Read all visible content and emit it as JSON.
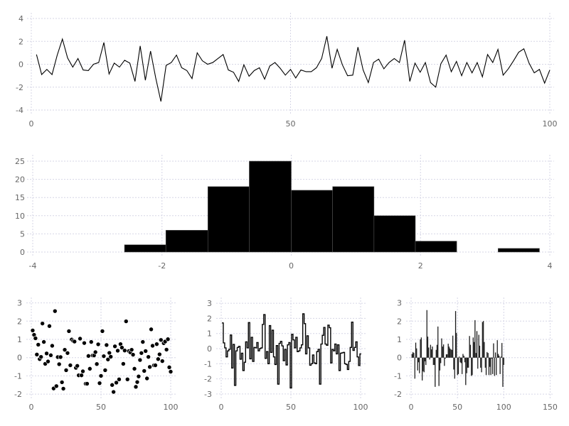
{
  "colors": {
    "line": "#000000",
    "grid": "#d6d6e6",
    "tick_label": "#666666",
    "bar_edge": "#555555"
  },
  "chart_data": [
    {
      "type": "line",
      "grid": true,
      "xlim": [
        0,
        100
      ],
      "ylim": [
        -4,
        4
      ],
      "xticks": [
        "0",
        "50",
        "100"
      ],
      "xtick_values": [
        0,
        50,
        100
      ],
      "yticks": [
        "-4",
        "-2",
        "0",
        "2",
        "4"
      ],
      "ytick_values": [
        -4,
        -2,
        0,
        2,
        4
      ],
      "x_start": 1,
      "values": [
        0.85,
        -0.9,
        -0.45,
        -0.9,
        0.8,
        2.2,
        0.55,
        -0.25,
        0.5,
        -0.5,
        -0.55,
        0.0,
        0.15,
        1.9,
        -0.85,
        0.1,
        -0.25,
        0.35,
        0.1,
        -1.5,
        1.6,
        -1.4,
        1.15,
        -1.2,
        -3.25,
        -0.1,
        0.15,
        0.8,
        -0.3,
        -0.55,
        -1.25,
        1.0,
        0.3,
        0.0,
        0.15,
        0.5,
        0.85,
        -0.5,
        -0.7,
        -1.5,
        -0.05,
        -1.05,
        -0.55,
        -0.3,
        -1.3,
        -0.15,
        0.15,
        -0.35,
        -0.95,
        -0.45,
        -1.2,
        -0.5,
        -0.65,
        -0.65,
        -0.3,
        0.5,
        2.45,
        -0.35,
        1.3,
        -0.05,
        -1.0,
        -0.95,
        1.5,
        -0.5,
        -1.6,
        0.15,
        0.45,
        -0.4,
        0.15,
        0.5,
        0.15,
        2.1,
        -1.5,
        0.1,
        -0.7,
        0.15,
        -1.6,
        -2.0,
        0.05,
        0.8,
        -0.65,
        0.25,
        -1.0,
        0.15,
        -0.75,
        0.15,
        -1.1,
        0.85,
        0.15,
        1.3,
        -0.95,
        -0.4,
        0.3,
        1.05,
        1.35,
        0.1,
        -0.75,
        -0.45,
        -1.65,
        -0.5
      ]
    },
    {
      "type": "bar",
      "subtype": "histogram",
      "grid": true,
      "xlim": [
        -4,
        4
      ],
      "ylim": [
        0,
        25
      ],
      "xticks": [
        "-4",
        "-2",
        "0",
        "2",
        "4"
      ],
      "xtick_values": [
        -4,
        -2,
        0,
        2,
        4
      ],
      "yticks": [
        "0",
        "5",
        "10",
        "15",
        "20",
        "25"
      ],
      "ytick_values": [
        0,
        5,
        10,
        15,
        20,
        25
      ],
      "bin_edges": [
        -2.58,
        -1.94,
        -1.29,
        -0.65,
        0.0,
        0.64,
        1.28,
        1.92,
        2.56,
        3.2,
        3.84
      ],
      "values": [
        2,
        6,
        18,
        25,
        17,
        18,
        10,
        3,
        0,
        1
      ]
    },
    {
      "type": "scatter",
      "grid": true,
      "xlim": [
        0,
        100
      ],
      "ylim": [
        -2,
        3
      ],
      "xticks": [
        "0",
        "50",
        "100"
      ],
      "xtick_values": [
        0,
        50,
        100
      ],
      "yticks": [
        "-2",
        "-1",
        "0",
        "1",
        "2",
        "3"
      ],
      "ytick_values": [
        -2,
        -1,
        0,
        1,
        2,
        3
      ],
      "x_start": 1,
      "values": [
        1.49,
        1.25,
        1.06,
        0.17,
        0.71,
        -0.08,
        0.04,
        1.87,
        0.86,
        -0.34,
        0.23,
        -0.21,
        1.73,
        0.13,
        0.65,
        -1.69,
        2.55,
        -1.56,
        0.03,
        -0.36,
        0.03,
        -1.35,
        -1.7,
        0.43,
        -0.69,
        0.25,
        1.45,
        -0.42,
        0.99,
        0.92,
        0.88,
        -0.56,
        -0.45,
        -0.97,
        1.04,
        -0.97,
        -0.75,
        0.8,
        -1.43,
        -1.43,
        0.09,
        -0.61,
        0.86,
        0.12,
        0.12,
        0.3,
        -0.35,
        0.73,
        -1.4,
        -1.0,
        1.45,
        0.08,
        -0.69,
        0.69,
        -0.1,
        0.26,
        0.05,
        -1.5,
        -1.88,
        0.62,
        -1.37,
        0.38,
        -1.19,
        0.74,
        0.55,
        -0.34,
        0.39,
        1.99,
        -1.19,
        0.36,
        0.29,
        0.43,
        0.16,
        -0.61,
        -1.6,
        -1.34,
        -1.03,
        -0.13,
        0.25,
        0.86,
        -0.73,
        0.36,
        -1.14,
        0.04,
        -0.51,
        1.55,
        0.65,
        -0.42,
        -0.42,
        0.74,
        -0.08,
        0.18,
        0.97,
        -0.19,
        0.79,
        0.88,
        0.44,
        1.01,
        -0.53,
        -0.77
      ]
    },
    {
      "type": "line",
      "subtype": "step",
      "grid": true,
      "xlim": [
        0,
        100
      ],
      "ylim": [
        -3,
        3
      ],
      "xticks": [
        "0",
        "50",
        "100"
      ],
      "xtick_values": [
        0,
        50,
        100
      ],
      "yticks": [
        "-3",
        "-2",
        "-1",
        "0",
        "1",
        "2",
        "3"
      ],
      "ytick_values": [
        -3,
        -2,
        -1,
        0,
        1,
        2,
        3
      ],
      "x_start": 1,
      "values": [
        1.7,
        0.38,
        0.05,
        -0.55,
        -0.15,
        -0.05,
        0.9,
        -1.28,
        0.28,
        -2.43,
        -0.15,
        0.08,
        0.15,
        -0.7,
        -0.3,
        -1.45,
        -0.9,
        0.45,
        0.05,
        1.72,
        -0.68,
        0.75,
        -0.85,
        0.08,
        0.05,
        0.4,
        -0.15,
        0.0,
        0.05,
        1.6,
        2.25,
        -0.65,
        -0.2,
        -1.0,
        1.52,
        -0.25,
        1.22,
        -0.55,
        -1.05,
        0.2,
        -2.35,
        0.35,
        0.48,
        0.18,
        -0.8,
        -0.05,
        -1.08,
        0.25,
        0.4,
        -2.6,
        0.95,
        0.58,
        0.05,
        0.75,
        -0.2,
        -0.15,
        0.05,
        0.25,
        2.3,
        1.65,
        -0.35,
        0.85,
        0.05,
        -1.1,
        -1.0,
        -0.42,
        -0.95,
        -1.0,
        -0.2,
        -0.05,
        -2.35,
        0.3,
        0.88,
        1.4,
        0.3,
        0.22,
        1.55,
        1.38,
        -0.95,
        -0.05,
        -0.15,
        0.3,
        -0.35,
        0.25,
        -1.45,
        -0.3,
        -0.28,
        -0.25,
        -1.0,
        -1.05,
        -1.38,
        -0.85,
        0.08,
        1.75,
        -0.12,
        0.08,
        0.45,
        -0.55,
        -1.12,
        -0.35
      ]
    },
    {
      "type": "bar",
      "grid": true,
      "xlim": [
        0,
        150
      ],
      "ylim": [
        -2,
        3
      ],
      "xticks": [
        "0",
        "50",
        "100",
        "150"
      ],
      "xtick_values": [
        0,
        50,
        100,
        150
      ],
      "yticks": [
        "-2",
        "-1",
        "0",
        "1",
        "2",
        "3"
      ],
      "ytick_values": [
        -2,
        -1,
        0,
        1,
        2,
        3
      ],
      "x_start": 1,
      "values": [
        0.2,
        0.3,
        0.25,
        -1.15,
        0.82,
        0.5,
        -0.7,
        -0.25,
        -0.85,
        1.0,
        1.1,
        -1.25,
        -0.75,
        -0.8,
        -0.2,
        -0.4,
        2.6,
        1.15,
        0.55,
        -0.1,
        0.7,
        0.45,
        0.6,
        -0.4,
        -0.4,
        -1.6,
        0.42,
        0.7,
        1.7,
        -1.55,
        -0.7,
        -0.3,
        1.05,
        0.6,
        0.72,
        -0.45,
        -0.05,
        0.18,
        0.18,
        0.76,
        0.6,
        0.5,
        0.45,
        0.42,
        1.2,
        -0.65,
        -1.15,
        2.55,
        1.35,
        -0.95,
        -0.9,
        0.05,
        -0.25,
        -0.3,
        -0.9,
        0.2,
        0.1,
        -0.25,
        -1.5,
        -0.85,
        -0.55,
        -0.55,
        1.18,
        0.7,
        -1.0,
        -0.95,
        1.1,
        0.85,
        2.05,
        0.25,
        1.45,
        -0.6,
        1.25,
        0.65,
        -0.55,
        -0.8,
        1.95,
        2.0,
        0.85,
        -0.55,
        -0.95,
        0.3,
        0.25,
        -0.95,
        -0.5,
        -0.95,
        -0.05,
        -0.9,
        0.78,
        -1.0,
        0.28,
        -0.95,
        0.95,
        0.2,
        0.1,
        -0.9,
        0.05,
        0.8,
        -1.6,
        -0.4
      ]
    }
  ]
}
